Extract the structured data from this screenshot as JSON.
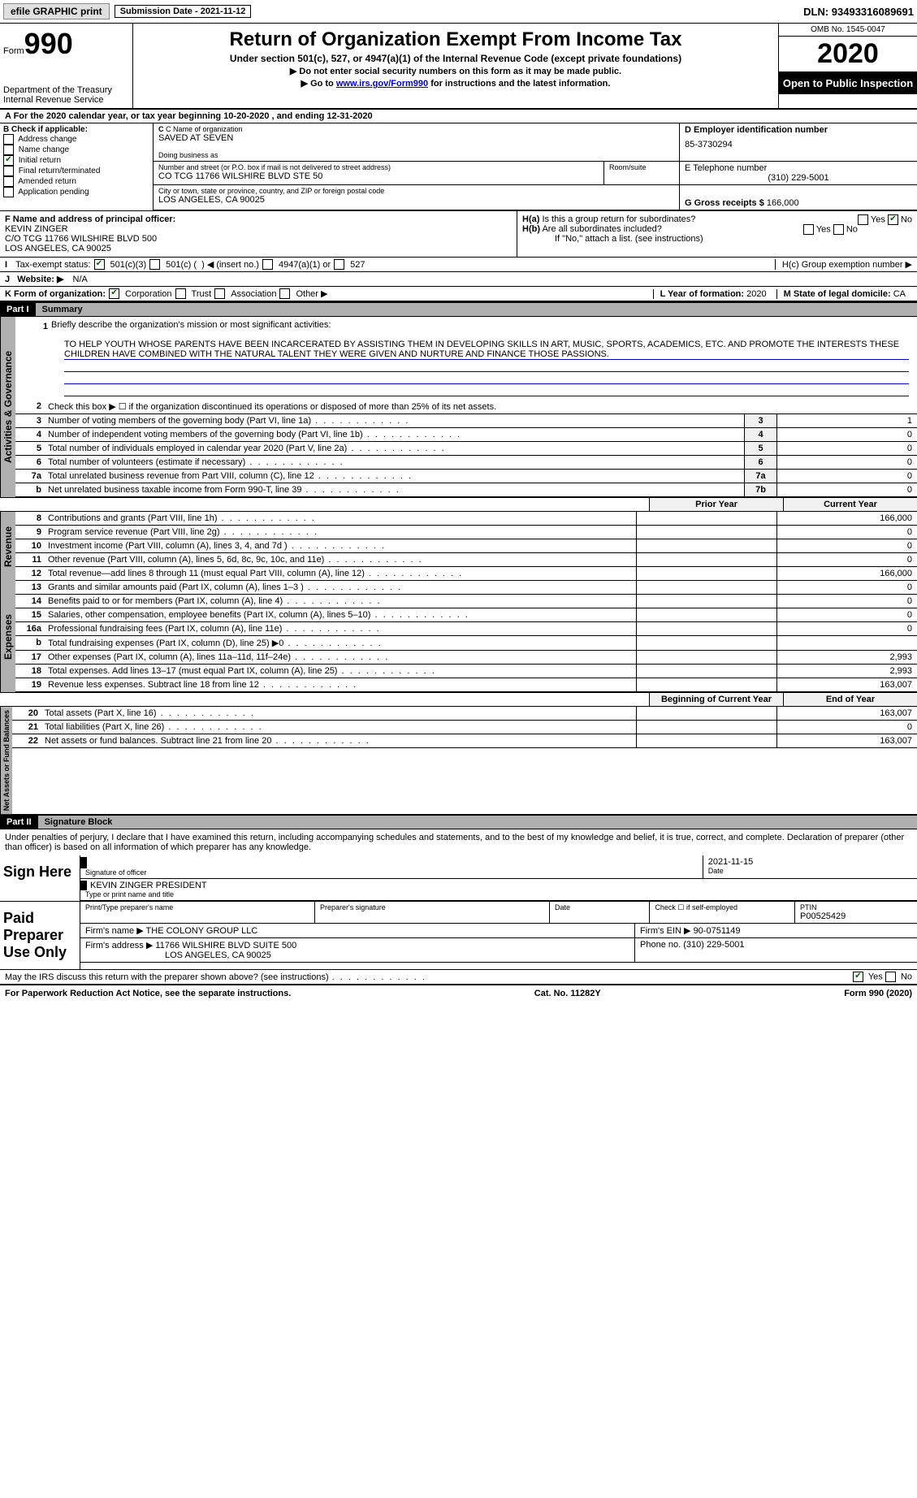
{
  "top": {
    "efile": "efile GRAPHIC print",
    "sub_date_label": "Submission Date - 2021-11-12",
    "dln": "DLN: 93493316089691"
  },
  "header": {
    "form_label": "Form",
    "form_num": "990",
    "dept": "Department of the Treasury",
    "irs": "Internal Revenue Service",
    "title": "Return of Organization Exempt From Income Tax",
    "subtitle": "Under section 501(c), 527, or 4947(a)(1) of the Internal Revenue Code (except private foundations)",
    "instr1": "▶ Do not enter social security numbers on this form as it may be made public.",
    "instr2": "▶ Go to www.irs.gov/Form990 for instructions and the latest information.",
    "omb": "OMB No. 1545-0047",
    "year": "2020",
    "open": "Open to Public Inspection"
  },
  "sectionA": {
    "text": "A For the 2020 calendar year, or tax year beginning 10-20-2020    , and ending 12-31-2020"
  },
  "B": {
    "header": "B Check if applicable:",
    "items": [
      {
        "label": "Address change",
        "checked": false
      },
      {
        "label": "Name change",
        "checked": false
      },
      {
        "label": "Initial return",
        "checked": true
      },
      {
        "label": "Final return/terminated",
        "checked": false
      },
      {
        "label": "Amended return",
        "checked": false
      },
      {
        "label": "Application pending",
        "checked": false
      }
    ]
  },
  "C": {
    "name_label": "C Name of organization",
    "name": "SAVED AT SEVEN",
    "dba_label": "Doing business as",
    "street_label": "Number and street (or P.O. box if mail is not delivered to street address)",
    "street": "CO TCG 11766 WILSHIRE BLVD STE 50",
    "room_label": "Room/suite",
    "city_label": "City or town, state or province, country, and ZIP or foreign postal code",
    "city": "LOS ANGELES, CA  90025"
  },
  "D": {
    "label": "D Employer identification number",
    "value": "85-3730294"
  },
  "E": {
    "label": "E Telephone number",
    "value": "(310) 229-5001"
  },
  "G": {
    "label": "G Gross receipts $",
    "value": "166,000"
  },
  "F": {
    "label": "F  Name and address of principal officer:",
    "name": "KEVIN ZINGER",
    "addr1": "C/O TCG 11766 WILSHIRE BLVD 500",
    "addr2": "LOS ANGELES, CA  90025"
  },
  "H": {
    "a_label": "H(a)  Is this a group return for subordinates?",
    "a_yes": "Yes",
    "a_no": "No",
    "b_label": "H(b)  Are all subordinates included?",
    "b_yes": "Yes",
    "b_no": "No",
    "b_note": "If \"No,\" attach a list. (see instructions)",
    "c_label": "H(c)  Group exemption number ▶"
  },
  "I": {
    "label": "I   Tax-exempt status:",
    "opts": [
      "501(c)(3)",
      "501(c) (  ) ◀ (insert no.)",
      "4947(a)(1) or",
      "527"
    ]
  },
  "J": {
    "label": "J   Website: ▶",
    "value": "N/A"
  },
  "K": {
    "label": "K Form of organization:",
    "opts": [
      "Corporation",
      "Trust",
      "Association",
      "Other ▶"
    ]
  },
  "L": {
    "label": "L Year of formation:",
    "value": "2020"
  },
  "M": {
    "label": "M State of legal domicile:",
    "value": "CA"
  },
  "partI": {
    "header": "Part I",
    "title": "Summary",
    "q1_label": "1",
    "q1_text": "Briefly describe the organization's mission or most significant activities:",
    "mission": "TO HELP YOUTH WHOSE PARENTS HAVE BEEN INCARCERATED BY ASSISTING THEM IN DEVELOPING SKILLS IN ART, MUSIC, SPORTS, ACADEMICS, ETC. AND PROMOTE THE INTERESTS THESE CHILDREN HAVE COMBINED WITH THE NATURAL TALENT THEY WERE GIVEN AND NURTURE AND FINANCE THOSE PASSIONS.",
    "gov_tab": "Activities & Governance",
    "rev_tab": "Revenue",
    "exp_tab": "Expenses",
    "net_tab": "Net Assets or Fund Balances",
    "lines_gov": [
      {
        "num": "2",
        "desc": "Check this box ▶ ☐ if the organization discontinued its operations or disposed of more than 25% of its net assets.",
        "box": "",
        "val": ""
      },
      {
        "num": "3",
        "desc": "Number of voting members of the governing body (Part VI, line 1a)",
        "box": "3",
        "val": "1"
      },
      {
        "num": "4",
        "desc": "Number of independent voting members of the governing body (Part VI, line 1b)",
        "box": "4",
        "val": "0"
      },
      {
        "num": "5",
        "desc": "Total number of individuals employed in calendar year 2020 (Part V, line 2a)",
        "box": "5",
        "val": "0"
      },
      {
        "num": "6",
        "desc": "Total number of volunteers (estimate if necessary)",
        "box": "6",
        "val": "0"
      },
      {
        "num": "7a",
        "desc": "Total unrelated business revenue from Part VIII, column (C), line 12",
        "box": "7a",
        "val": "0"
      },
      {
        "num": "b",
        "desc": "Net unrelated business taxable income from Form 990-T, line 39",
        "box": "7b",
        "val": "0"
      }
    ],
    "col_prior": "Prior Year",
    "col_current": "Current Year",
    "lines_rev": [
      {
        "num": "8",
        "desc": "Contributions and grants (Part VIII, line 1h)",
        "prior": "",
        "cur": "166,000"
      },
      {
        "num": "9",
        "desc": "Program service revenue (Part VIII, line 2g)",
        "prior": "",
        "cur": "0"
      },
      {
        "num": "10",
        "desc": "Investment income (Part VIII, column (A), lines 3, 4, and 7d )",
        "prior": "",
        "cur": "0"
      },
      {
        "num": "11",
        "desc": "Other revenue (Part VIII, column (A), lines 5, 6d, 8c, 9c, 10c, and 11e)",
        "prior": "",
        "cur": "0"
      },
      {
        "num": "12",
        "desc": "Total revenue—add lines 8 through 11 (must equal Part VIII, column (A), line 12)",
        "prior": "",
        "cur": "166,000"
      }
    ],
    "lines_exp": [
      {
        "num": "13",
        "desc": "Grants and similar amounts paid (Part IX, column (A), lines 1–3 )",
        "prior": "",
        "cur": "0"
      },
      {
        "num": "14",
        "desc": "Benefits paid to or for members (Part IX, column (A), line 4)",
        "prior": "",
        "cur": "0"
      },
      {
        "num": "15",
        "desc": "Salaries, other compensation, employee benefits (Part IX, column (A), lines 5–10)",
        "prior": "",
        "cur": "0"
      },
      {
        "num": "16a",
        "desc": "Professional fundraising fees (Part IX, column (A), line 11e)",
        "prior": "",
        "cur": "0"
      },
      {
        "num": "b",
        "desc": "Total fundraising expenses (Part IX, column (D), line 25) ▶0",
        "prior": "",
        "cur": ""
      },
      {
        "num": "17",
        "desc": "Other expenses (Part IX, column (A), lines 11a–11d, 11f–24e)",
        "prior": "",
        "cur": "2,993"
      },
      {
        "num": "18",
        "desc": "Total expenses. Add lines 13–17 (must equal Part IX, column (A), line 25)",
        "prior": "",
        "cur": "2,993"
      },
      {
        "num": "19",
        "desc": "Revenue less expenses. Subtract line 18 from line 12",
        "prior": "",
        "cur": "163,007"
      }
    ],
    "col_begin": "Beginning of Current Year",
    "col_end": "End of Year",
    "lines_net": [
      {
        "num": "20",
        "desc": "Total assets (Part X, line 16)",
        "prior": "",
        "cur": "163,007"
      },
      {
        "num": "21",
        "desc": "Total liabilities (Part X, line 26)",
        "prior": "",
        "cur": "0"
      },
      {
        "num": "22",
        "desc": "Net assets or fund balances. Subtract line 21 from line 20",
        "prior": "",
        "cur": "163,007"
      }
    ]
  },
  "partII": {
    "header": "Part II",
    "title": "Signature Block",
    "penalty": "Under penalties of perjury, I declare that I have examined this return, including accompanying schedules and statements, and to the best of my knowledge and belief, it is true, correct, and complete. Declaration of preparer (other than officer) is based on all information of which preparer has any knowledge.",
    "sign_here": "Sign Here",
    "sig_officer": "Signature of officer",
    "sig_date": "2021-11-15",
    "date_label": "Date",
    "officer_name": "KEVIN ZINGER PRESIDENT",
    "type_label": "Type or print name and title",
    "paid_label": "Paid Preparer Use Only",
    "prep_name_label": "Print/Type preparer's name",
    "prep_sig_label": "Preparer's signature",
    "prep_date_label": "Date",
    "self_emp": "Check ☐ if self-employed",
    "ptin_label": "PTIN",
    "ptin": "P00525429",
    "firm_name_label": "Firm's name   ▶",
    "firm_name": "THE COLONY GROUP LLC",
    "firm_ein_label": "Firm's EIN ▶",
    "firm_ein": "90-0751149",
    "firm_addr_label": "Firm's address ▶",
    "firm_addr1": "11766 WILSHIRE BLVD SUITE 500",
    "firm_addr2": "LOS ANGELES, CA  90025",
    "phone_label": "Phone no.",
    "phone": "(310) 229-5001",
    "discuss": "May the IRS discuss this return with the preparer shown above? (see instructions)",
    "discuss_yes": "Yes",
    "discuss_no": "No"
  },
  "footer": {
    "pra": "For Paperwork Reduction Act Notice, see the separate instructions.",
    "cat": "Cat. No. 11282Y",
    "form": "Form 990 (2020)"
  }
}
